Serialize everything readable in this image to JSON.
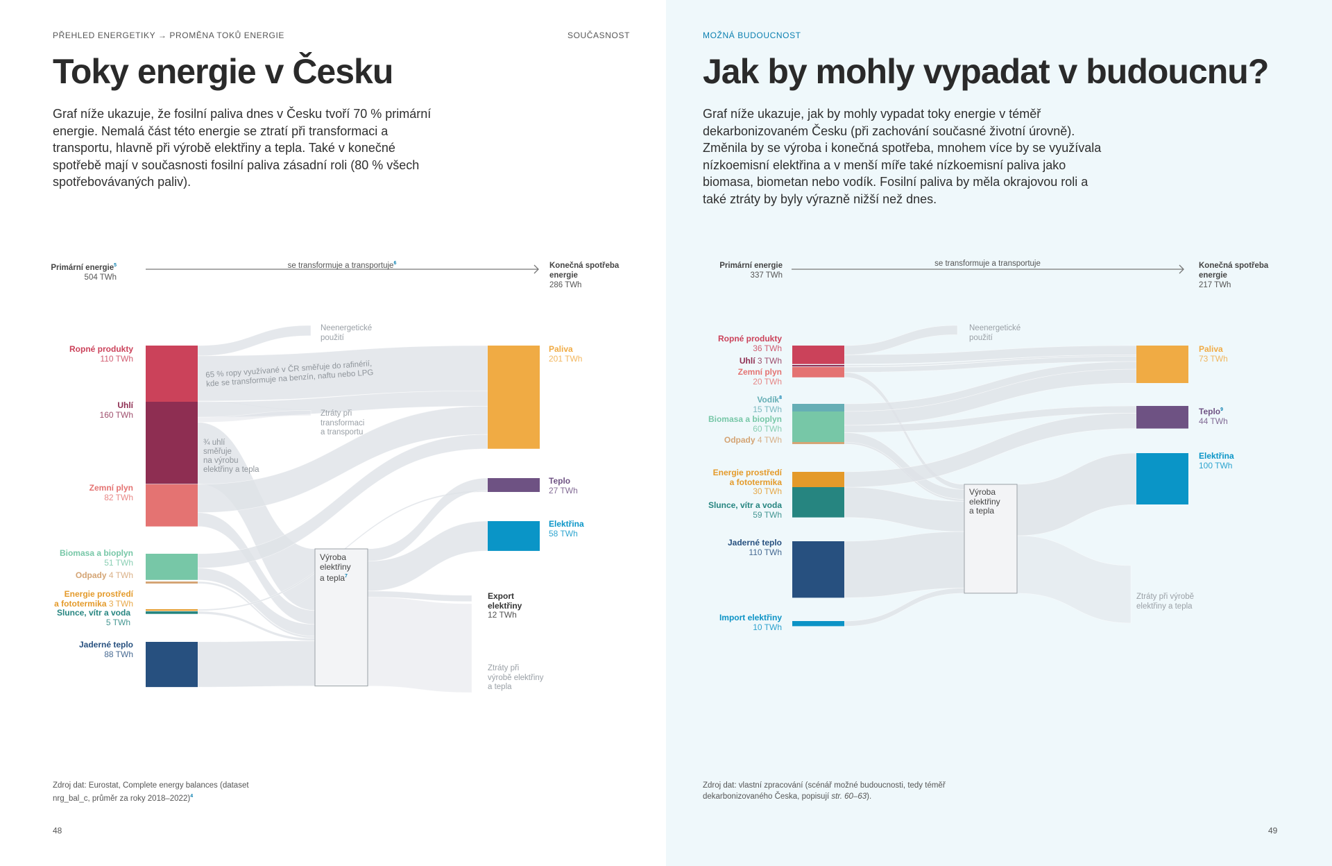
{
  "left": {
    "breadcrumb": "PŘEHLED ENERGETIKY → PROMĚNA TOKŮ ENERGIE",
    "section": "SOUČASNOST",
    "title": "Toky energie v Česku",
    "lead": "Graf níže ukazuje, že fosilní paliva dnes v Česku tvoří 70 % primární energie. Nemalá část této energie se ztratí při transformaci a transportu, hlavně při výrobě elektřiny a tepla. Také v konečné spotřebě mají v současnosti fosilní paliva zásadní roli (80 % všech spotřebovávaných paliv).",
    "source": "Zdroj dat: Eurostat, Complete energy balances (dataset nrg_bal_c, průměr za roky 2018–2022)",
    "source_sup": "4",
    "page_number": "48"
  },
  "right": {
    "breadcrumb": "MOŽNÁ BUDOUCNOST",
    "title": "Jak by mohly vypadat v budoucnu?",
    "lead": "Graf níže ukazuje, jak by mohly vypadat toky energie v téměř dekarbonizovaném Česku (při zachování současné životní úrovně). Změnila by se výroba i konečná spotřeba, mnohem více by se využívala nízkoemisní elektřina a v menší míře také nízkoemisní paliva jako biomasa, biometan nebo vodík. Fosilní paliva by měla okrajovou roli a také ztráty by byly výrazně nižší než dnes.",
    "source": "Zdroj dat: vlastní zpracování (scénář možné budoucnosti, tedy téměř dekarbonizovaného Česka, popisují ",
    "source_ref": "str. 60–63",
    "source_end": ").",
    "page_number": "49",
    "accent": "#0a7fb0"
  },
  "chart_data": [
    {
      "type": "sankey",
      "unit": "TWh",
      "header": {
        "primary_label": "Primární energie",
        "primary_sup": "5",
        "primary_value": "504 TWh",
        "middle": "se transformuje a transportuje",
        "middle_sup": "6",
        "final_label": "Konečná spotřeba energie",
        "final_value": "286 TWh"
      },
      "annotations": {
        "refinery": "65 % ropy využívané v ČR směřuje do rafinérií,\nkde se transformuje na benzín, naftu nebo LPG",
        "coal": "¾ uhlí\nsměřuje\nna výrobu\nelektřiny a tepla"
      },
      "nodes": [
        {
          "id": "ropne",
          "name": "Ropné produkty",
          "value": 110,
          "value_text": "110 TWh",
          "color": "#cb425a"
        },
        {
          "id": "uhli",
          "name": "Uhlí",
          "value": 160,
          "value_text": "160 TWh",
          "color": "#8e2e52"
        },
        {
          "id": "plyn",
          "name": "Zemní plyn",
          "value": 82,
          "value_text": "82 TWh",
          "color": "#e47372"
        },
        {
          "id": "bio",
          "name": "Biomasa a bioplyn",
          "value": 51,
          "value_text": "51 TWh",
          "color": "#77c7a7"
        },
        {
          "id": "odpady",
          "name": "Odpady",
          "value": 4,
          "value_text": "4 TWh",
          "color": "#d4a474"
        },
        {
          "id": "prostredi",
          "name": "Energie prostředí\na fototermika",
          "value": 3,
          "value_text": "3 TWh",
          "color": "#e49a2a"
        },
        {
          "id": "slunce",
          "name": "Slunce, vítr a voda",
          "value": 5,
          "value_text": "5 TWh",
          "color": "#268580"
        },
        {
          "id": "jadro",
          "name": "Jaderné teplo",
          "value": 88,
          "value_text": "88 TWh",
          "color": "#27507f"
        },
        {
          "id": "vyroba",
          "name": "Výroba\nelektřiny\na tepla",
          "sup": "7",
          "color": "#f3f4f6"
        },
        {
          "id": "neen",
          "name": "Neenergetické\npoužití",
          "color": "#9aa0a6"
        },
        {
          "id": "ztrT",
          "name": "Ztráty při\ntransformaci\na transportu",
          "color": "#9aa0a6"
        },
        {
          "id": "paliva",
          "name": "Paliva",
          "value": 201,
          "value_text": "201 TWh",
          "color": "#f0ab44"
        },
        {
          "id": "teplo",
          "name": "Teplo",
          "value": 27,
          "value_text": "27 TWh",
          "color": "#6e5283"
        },
        {
          "id": "elek",
          "name": "Elektřina",
          "value": 58,
          "value_text": "58 TWh",
          "color": "#0a95c7"
        },
        {
          "id": "export",
          "name": "Export\nelektřiny",
          "value": 12,
          "value_text": "12 TWh",
          "color": "#333333"
        },
        {
          "id": "ztrV",
          "name": "Ztráty při\nvýrobě elektřiny\na tepla",
          "color": "#9aa0a6"
        }
      ],
      "links": [
        [
          "ropne",
          "neen",
          20
        ],
        [
          "ropne",
          "paliva",
          88
        ],
        [
          "ropne",
          "ztrT",
          2
        ],
        [
          "uhli",
          "paliva",
          30
        ],
        [
          "uhli",
          "ztrT",
          10
        ],
        [
          "uhli",
          "vyroba",
          120
        ],
        [
          "plyn",
          "paliva",
          55
        ],
        [
          "plyn",
          "vyroba",
          27
        ],
        [
          "bio",
          "paliva",
          28
        ],
        [
          "bio",
          "vyroba",
          23
        ],
        [
          "odpady",
          "vyroba",
          4
        ],
        [
          "prostredi",
          "teplo",
          3
        ],
        [
          "slunce",
          "vyroba",
          5
        ],
        [
          "jadro",
          "vyroba",
          88
        ],
        [
          "vyroba",
          "teplo",
          24
        ],
        [
          "vyroba",
          "elek",
          58
        ],
        [
          "vyroba",
          "export",
          12
        ],
        [
          "vyroba",
          "ztrV",
          173
        ]
      ]
    },
    {
      "type": "sankey",
      "unit": "TWh",
      "header": {
        "primary_label": "Primární energie",
        "primary_value": "337 TWh",
        "middle": "se transformuje a transportuje",
        "final_label": "Konečná spotřeba energie",
        "final_value": "217 TWh"
      },
      "nodes": [
        {
          "id": "ropne",
          "name": "Ropné produkty",
          "value": 36,
          "value_text": "36 TWh",
          "color": "#cb425a"
        },
        {
          "id": "uhli",
          "name": "Uhlí",
          "value": 3,
          "value_text": "3 TWh",
          "color": "#8e2e52"
        },
        {
          "id": "plyn",
          "name": "Zemní plyn",
          "value": 20,
          "value_text": "20 TWh",
          "color": "#e47372"
        },
        {
          "id": "vodik",
          "name": "Vodík",
          "sup": "8",
          "value": 15,
          "value_text": "15 TWh",
          "color": "#66aeb5"
        },
        {
          "id": "bio",
          "name": "Biomasa a bioplyn",
          "value": 60,
          "value_text": "60 TWh",
          "color": "#77c7a7"
        },
        {
          "id": "odpady",
          "name": "Odpady",
          "value": 4,
          "value_text": "4 TWh",
          "color": "#d4a474"
        },
        {
          "id": "prostredi",
          "name": "Energie prostředí\na fototermika",
          "value": 30,
          "value_text": "30 TWh",
          "color": "#e49a2a"
        },
        {
          "id": "slunce",
          "name": "Slunce, vítr a voda",
          "value": 59,
          "value_text": "59 TWh",
          "color": "#268580"
        },
        {
          "id": "jadro",
          "name": "Jaderné teplo",
          "value": 110,
          "value_text": "110 TWh",
          "color": "#27507f"
        },
        {
          "id": "import",
          "name": "Import elektřiny",
          "value": 10,
          "value_text": "10 TWh",
          "color": "#0c93c6"
        },
        {
          "id": "vyroba",
          "name": "Výroba\nelektřiny\na tepla",
          "color": "#f3f4f6"
        },
        {
          "id": "neen",
          "name": "Neenergetické\npoužití",
          "color": "#9aa0a6"
        },
        {
          "id": "paliva",
          "name": "Paliva",
          "value": 73,
          "value_text": "73 TWh",
          "color": "#f0ab44"
        },
        {
          "id": "teplo",
          "name": "Teplo",
          "sup": "9",
          "value": 44,
          "value_text": "44 TWh",
          "color": "#6e5283"
        },
        {
          "id": "elek",
          "name": "Elektřina",
          "value": 100,
          "value_text": "100 TWh",
          "color": "#0a95c7"
        },
        {
          "id": "ztrV",
          "name": "Ztráty při výrobě\nelektřiny a tepla",
          "color": "#9aa0a6"
        }
      ],
      "links": [
        [
          "ropne",
          "neen",
          18
        ],
        [
          "ropne",
          "paliva",
          18
        ],
        [
          "uhli",
          "paliva",
          3
        ],
        [
          "plyn",
          "paliva",
          10
        ],
        [
          "plyn",
          "vyroba",
          10
        ],
        [
          "vodik",
          "paliva",
          15
        ],
        [
          "bio",
          "paliva",
          27
        ],
        [
          "bio",
          "teplo",
          14
        ],
        [
          "bio",
          "vyroba",
          19
        ],
        [
          "odpady",
          "vyroba",
          4
        ],
        [
          "prostredi",
          "teplo",
          30
        ],
        [
          "slunce",
          "vyroba",
          59
        ],
        [
          "jadro",
          "vyroba",
          110
        ],
        [
          "import",
          "vyroba",
          10
        ],
        [
          "vyroba",
          "elek",
          100
        ],
        [
          "vyroba",
          "ztrV",
          112
        ]
      ]
    }
  ]
}
